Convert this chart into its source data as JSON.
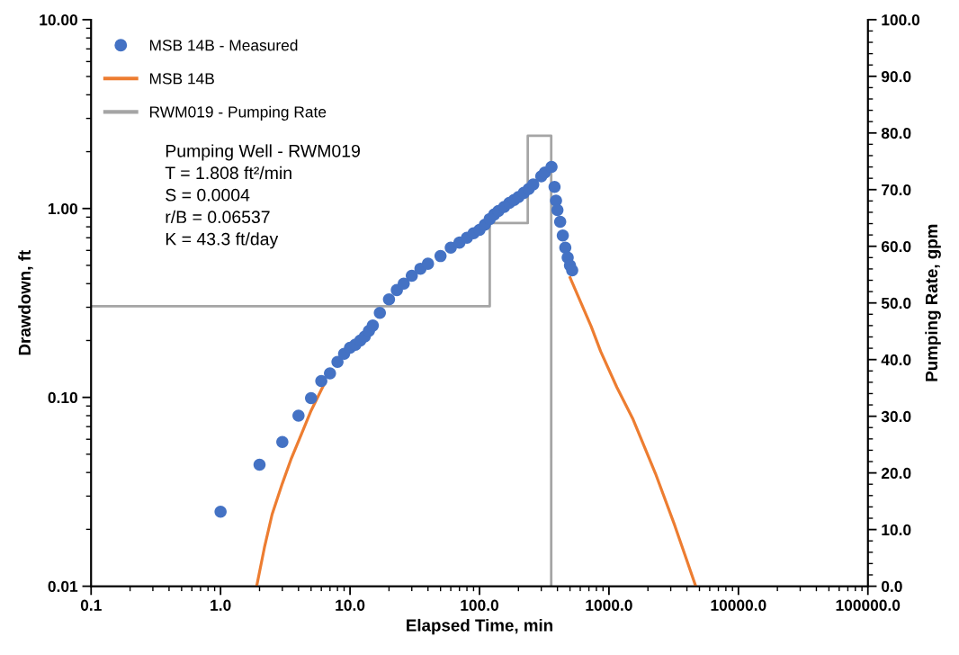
{
  "chart_data": {
    "type": "line",
    "xlabel": "Elapsed Time, min",
    "ylabel": "Drawdown, ft",
    "y2label": "Pumping Rate, gpm",
    "log": "xy",
    "grid": false,
    "legend": "top left",
    "xlim": [
      0.1,
      100000
    ],
    "xticks": [
      {
        "value": 0.1,
        "label": "0.1"
      },
      {
        "value": 1,
        "label": "1.0"
      },
      {
        "value": 10,
        "label": "10.0"
      },
      {
        "value": 100,
        "label": "100.0"
      },
      {
        "value": 1000,
        "label": "1000.0"
      },
      {
        "value": 10000,
        "label": "10000.0"
      },
      {
        "value": 100000,
        "label": "100000.0"
      }
    ],
    "ylim": [
      0.01,
      10
    ],
    "yticks": [
      {
        "value": 0.01,
        "label": "0.01"
      },
      {
        "value": 0.1,
        "label": "0.10"
      },
      {
        "value": 1,
        "label": "1.00"
      },
      {
        "value": 10,
        "label": "10.00"
      }
    ],
    "y2lim": [
      0,
      100
    ],
    "y2ticks": [
      {
        "value": 0,
        "label": "0.0"
      },
      {
        "value": 10,
        "label": "10.0"
      },
      {
        "value": 20,
        "label": "20.0"
      },
      {
        "value": 30,
        "label": "30.0"
      },
      {
        "value": 40,
        "label": "40.0"
      },
      {
        "value": 50,
        "label": "50.0"
      },
      {
        "value": 60,
        "label": "60.0"
      },
      {
        "value": 70,
        "label": "70.0"
      },
      {
        "value": 80,
        "label": "80.0"
      },
      {
        "value": 90,
        "label": "90.0"
      },
      {
        "value": 100,
        "label": "100.0"
      }
    ],
    "annotations": [
      "Pumping Well - RWM019\nT = 1.808 ft²/min\nS = 0.0004\nr/B = 0.06537\nK = 43.3 ft/day"
    ],
    "series": [
      {
        "name": "MSB 14B - Measured",
        "type": "scatter",
        "marker": "circle",
        "color": "#4472c4",
        "x": [
          1,
          2,
          3,
          4,
          5,
          6,
          7,
          8,
          9,
          10,
          11,
          12,
          13,
          14,
          15,
          17,
          20,
          23,
          26,
          30,
          35,
          40,
          50,
          60,
          70,
          80,
          90,
          100,
          110,
          120,
          130,
          140,
          155,
          170,
          185,
          200,
          220,
          240,
          260,
          300,
          320,
          360,
          380,
          390,
          400,
          420,
          440,
          460,
          480,
          500,
          520
        ],
        "values": [
          0.0248,
          0.044,
          0.058,
          0.08,
          0.099,
          0.122,
          0.134,
          0.154,
          0.17,
          0.183,
          0.19,
          0.2,
          0.21,
          0.225,
          0.24,
          0.28,
          0.33,
          0.37,
          0.4,
          0.44,
          0.48,
          0.51,
          0.56,
          0.62,
          0.66,
          0.7,
          0.74,
          0.77,
          0.82,
          0.88,
          0.93,
          0.97,
          1.02,
          1.07,
          1.11,
          1.15,
          1.21,
          1.27,
          1.34,
          1.48,
          1.55,
          1.66,
          1.3,
          1.1,
          0.98,
          0.85,
          0.72,
          0.62,
          0.55,
          0.5,
          0.47
        ]
      },
      {
        "name": "MSB 14B",
        "marker": "none",
        "color": "#ed7d31",
        "x": [
          1.9,
          2.18,
          2.5,
          3.0,
          3.5,
          4.1,
          5,
          6.4,
          100,
          501,
          728,
          863,
          1151,
          1535,
          2290,
          3220,
          4680
        ],
        "values": [
          0.01,
          0.016,
          0.024,
          0.035,
          0.047,
          0.061,
          0.085,
          0.12,
          null,
          0.43,
          0.238,
          0.175,
          0.113,
          0.0765,
          0.0394,
          0.021,
          0.01
        ]
      },
      {
        "name": "RWM019 - Pumping Rate",
        "axis": "y2",
        "marker": "none",
        "color": "#a5a5a5",
        "x": [
          0.1,
          120,
          120,
          236,
          236,
          358,
          358
        ],
        "values": [
          49.4,
          49.4,
          64.1,
          64.1,
          79.5,
          79.5,
          0
        ]
      }
    ]
  }
}
